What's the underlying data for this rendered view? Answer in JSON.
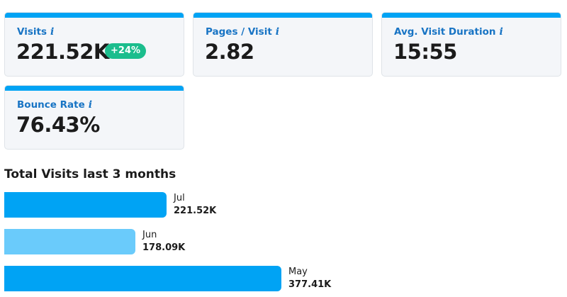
{
  "metrics": [
    {
      "label": "Visits",
      "value": "221.52K",
      "badge": "+24%"
    },
    {
      "label": "Pages / Visit",
      "value": "2.82"
    },
    {
      "label": "Avg. Visit Duration",
      "value": "15:55"
    },
    {
      "label": "Bounce Rate",
      "value": "76.43%"
    }
  ],
  "info_glyph": "i",
  "colors": {
    "accent": "#00a3f4",
    "accent_light": "#6acbfb",
    "label_blue": "#1874c4",
    "badge_green": "#1bbd8d"
  },
  "visits_chart": {
    "title": "Total Visits last 3 months",
    "chart_data": {
      "type": "bar",
      "orientation": "horizontal",
      "categories": [
        "Jul",
        "Jun",
        "May"
      ],
      "values": [
        221520,
        178090,
        377410
      ],
      "value_labels": [
        "221.52K",
        "178.09K",
        "377.41K"
      ],
      "bar_colors": [
        "#00a3f4",
        "#6acbfb",
        "#00a3f4"
      ]
    }
  }
}
